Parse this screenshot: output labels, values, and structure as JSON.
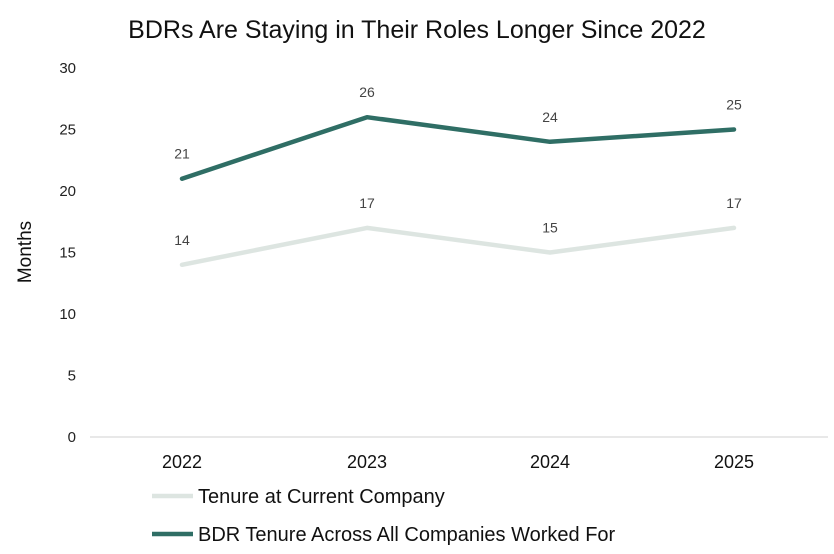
{
  "chart_data": {
    "type": "line",
    "title": "BDRs Are Staying in Their Roles Longer Since 2022",
    "xlabel": "",
    "ylabel": "Months",
    "categories": [
      "2022",
      "2023",
      "2024",
      "2025"
    ],
    "ylim": [
      0,
      30
    ],
    "yticks": [
      0,
      5,
      10,
      15,
      20,
      25,
      30
    ],
    "grid": false,
    "legend_position": "bottom",
    "series": [
      {
        "name": "Tenure at Current Company",
        "values": [
          14,
          17,
          15,
          17
        ],
        "color": "#dde5e1"
      },
      {
        "name": "BDR Tenure Across All Companies Worked For",
        "values": [
          21,
          26,
          24,
          25
        ],
        "color": "#2f6e65"
      }
    ]
  }
}
